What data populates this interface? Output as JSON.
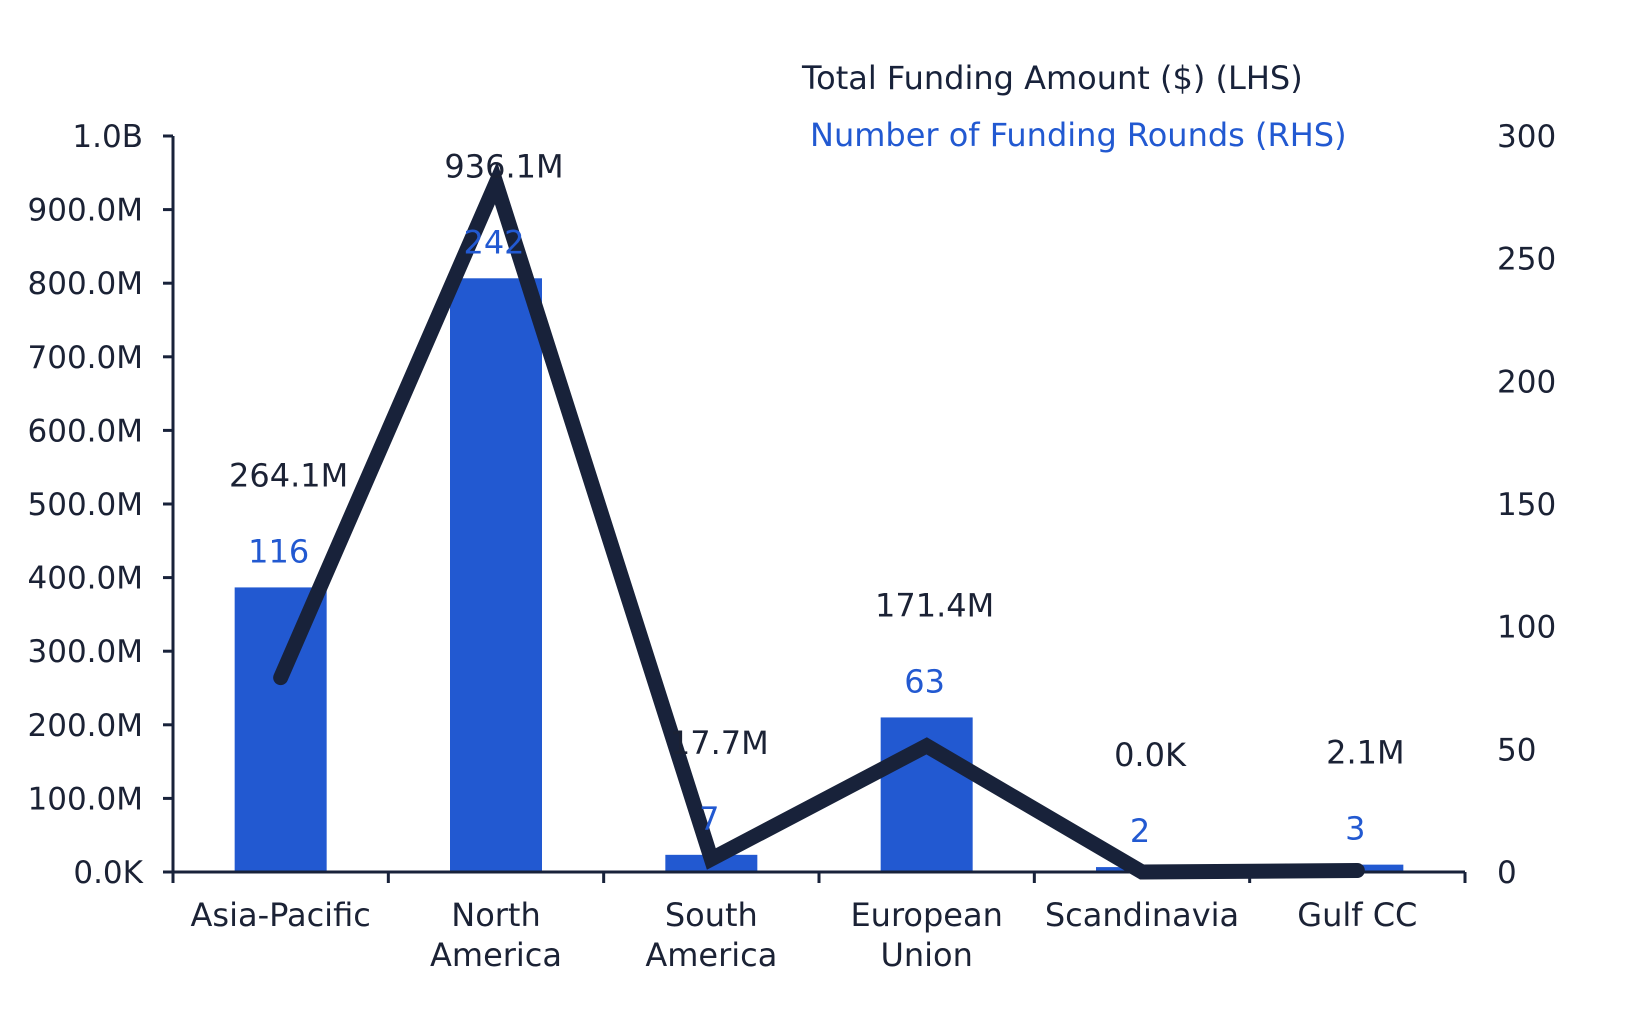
{
  "chart_data": {
    "type": "bar",
    "categories": [
      [
        "Asia-Pacific"
      ],
      [
        "North",
        "America"
      ],
      [
        "South",
        "America"
      ],
      [
        "European",
        "Union"
      ],
      [
        "Scandinavia"
      ],
      [
        "Gulf CC"
      ]
    ],
    "series": [
      {
        "name": "Total Funding Amount ($) (LHS)",
        "type": "line",
        "axis": "left",
        "values": [
          264.1,
          936.1,
          17.7,
          171.4,
          0.0,
          2.1
        ],
        "labels": [
          "264.1M",
          "936.1M",
          "17.7M",
          "171.4M",
          "0.0K",
          "2.1M"
        ],
        "color": "#18223a"
      },
      {
        "name": "Number of Funding Rounds (RHS)",
        "type": "bar",
        "axis": "right",
        "values": [
          116,
          242,
          7,
          63,
          2,
          3
        ],
        "labels": [
          "116",
          "242",
          "7",
          "63",
          "2",
          "3"
        ],
        "color": "#2259d1"
      }
    ],
    "left_axis": {
      "unit": "millions of $",
      "ylim": [
        0,
        1000
      ],
      "ticks": [
        0,
        100,
        200,
        300,
        400,
        500,
        600,
        700,
        800,
        900,
        1000
      ],
      "tick_labels": [
        "0.0K",
        "100.0M",
        "200.0M",
        "300.0M",
        "400.0M",
        "500.0M",
        "600.0M",
        "700.0M",
        "800.0M",
        "900.0M",
        "1.0B"
      ]
    },
    "right_axis": {
      "ylim": [
        0,
        300
      ],
      "ticks": [
        0,
        50,
        100,
        150,
        200,
        250,
        300
      ],
      "tick_labels": [
        "0",
        "50",
        "100",
        "150",
        "200",
        "250",
        "300"
      ]
    },
    "grid": false,
    "legend_position": "top-right",
    "label_color": "#1b2235"
  }
}
